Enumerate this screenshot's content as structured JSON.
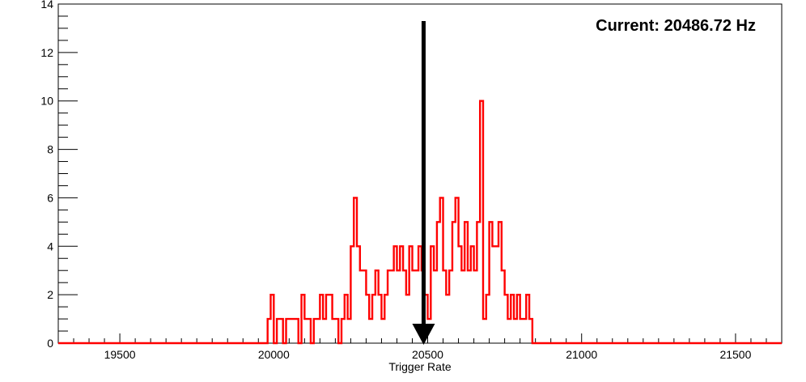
{
  "chart_data": {
    "type": "histogram",
    "xlabel": "Trigger Rate",
    "ylabel": "",
    "xlim": [
      19300,
      21650
    ],
    "ylim": [
      0,
      14
    ],
    "x_ticks": [
      19500,
      20000,
      20500,
      21000,
      21500
    ],
    "y_ticks": [
      0,
      2,
      4,
      6,
      8,
      10,
      12,
      14
    ],
    "series_color": "#ff0000",
    "bin_width": 10,
    "bins": [
      [
        19980,
        1
      ],
      [
        19990,
        2
      ],
      [
        20000,
        0
      ],
      [
        20010,
        1
      ],
      [
        20020,
        1
      ],
      [
        20030,
        0
      ],
      [
        20040,
        1
      ],
      [
        20050,
        1
      ],
      [
        20060,
        1
      ],
      [
        20070,
        1
      ],
      [
        20080,
        0
      ],
      [
        20090,
        2
      ],
      [
        20100,
        1
      ],
      [
        20110,
        1
      ],
      [
        20120,
        0
      ],
      [
        20130,
        1
      ],
      [
        20140,
        1
      ],
      [
        20150,
        2
      ],
      [
        20160,
        1
      ],
      [
        20170,
        2
      ],
      [
        20180,
        2
      ],
      [
        20190,
        1
      ],
      [
        20200,
        1
      ],
      [
        20210,
        0
      ],
      [
        20220,
        1
      ],
      [
        20230,
        2
      ],
      [
        20240,
        1
      ],
      [
        20250,
        4
      ],
      [
        20260,
        6
      ],
      [
        20270,
        4
      ],
      [
        20280,
        3
      ],
      [
        20290,
        3
      ],
      [
        20300,
        2
      ],
      [
        20310,
        1
      ],
      [
        20320,
        2
      ],
      [
        20330,
        3
      ],
      [
        20340,
        2
      ],
      [
        20350,
        1
      ],
      [
        20360,
        2
      ],
      [
        20370,
        3
      ],
      [
        20380,
        3
      ],
      [
        20390,
        4
      ],
      [
        20400,
        3
      ],
      [
        20410,
        4
      ],
      [
        20420,
        3
      ],
      [
        20430,
        2
      ],
      [
        20440,
        4
      ],
      [
        20450,
        3
      ],
      [
        20460,
        3
      ],
      [
        20470,
        4
      ],
      [
        20480,
        3
      ],
      [
        20490,
        2
      ],
      [
        20500,
        1
      ],
      [
        20510,
        4
      ],
      [
        20520,
        3
      ],
      [
        20530,
        5
      ],
      [
        20540,
        6
      ],
      [
        20550,
        3
      ],
      [
        20560,
        2
      ],
      [
        20570,
        3
      ],
      [
        20580,
        5
      ],
      [
        20590,
        6
      ],
      [
        20600,
        4
      ],
      [
        20610,
        3
      ],
      [
        20620,
        5
      ],
      [
        20630,
        3
      ],
      [
        20640,
        4
      ],
      [
        20650,
        3
      ],
      [
        20660,
        5
      ],
      [
        20670,
        10
      ],
      [
        20680,
        1
      ],
      [
        20690,
        2
      ],
      [
        20700,
        5
      ],
      [
        20710,
        4
      ],
      [
        20720,
        4
      ],
      [
        20730,
        5
      ],
      [
        20740,
        3
      ],
      [
        20750,
        2
      ],
      [
        20760,
        1
      ],
      [
        20770,
        2
      ],
      [
        20780,
        1
      ],
      [
        20790,
        2
      ],
      [
        20800,
        1
      ],
      [
        20810,
        1
      ],
      [
        20820,
        2
      ],
      [
        20830,
        1
      ]
    ],
    "marker": {
      "x": 20486.72,
      "y_top": 13.3
    },
    "annotation": "Current: 20486.72 Hz"
  }
}
